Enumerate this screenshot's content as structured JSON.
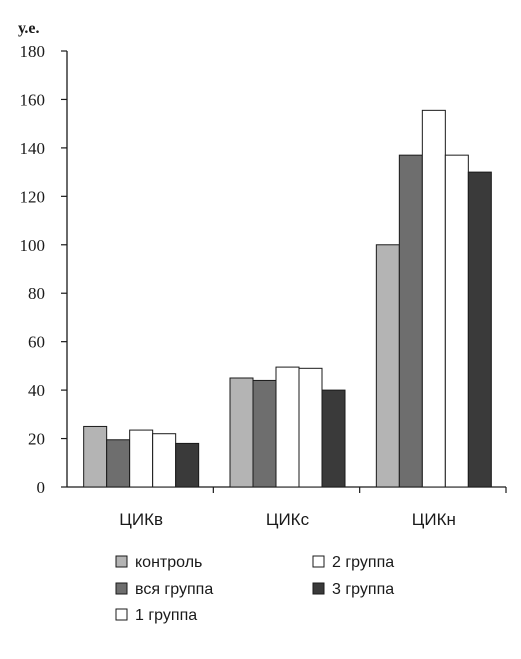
{
  "chart_data": {
    "type": "bar",
    "ylabel": "у.е.",
    "ylim": [
      0,
      180
    ],
    "yticks": [
      0,
      20,
      40,
      60,
      80,
      100,
      120,
      140,
      160,
      180
    ],
    "categories": [
      "ЦИКв",
      "ЦИКс",
      "ЦИКн"
    ],
    "series": [
      {
        "name": "контроль",
        "color": "#b4b4b4",
        "values": [
          25,
          45,
          100
        ]
      },
      {
        "name": "вся группа",
        "color": "#6e6e6e",
        "values": [
          19.5,
          44,
          137
        ]
      },
      {
        "name": "2 группа",
        "color": "#ffffff",
        "values": [
          23.5,
          49.5,
          155.5
        ]
      },
      {
        "name": "1 группа",
        "color": "#ffffff",
        "values": [
          22,
          49,
          137
        ]
      },
      {
        "name": "3 группа",
        "color": "#3a3a3a",
        "values": [
          18,
          40,
          130
        ]
      }
    ],
    "legend_position": "bottom",
    "grid": false
  }
}
